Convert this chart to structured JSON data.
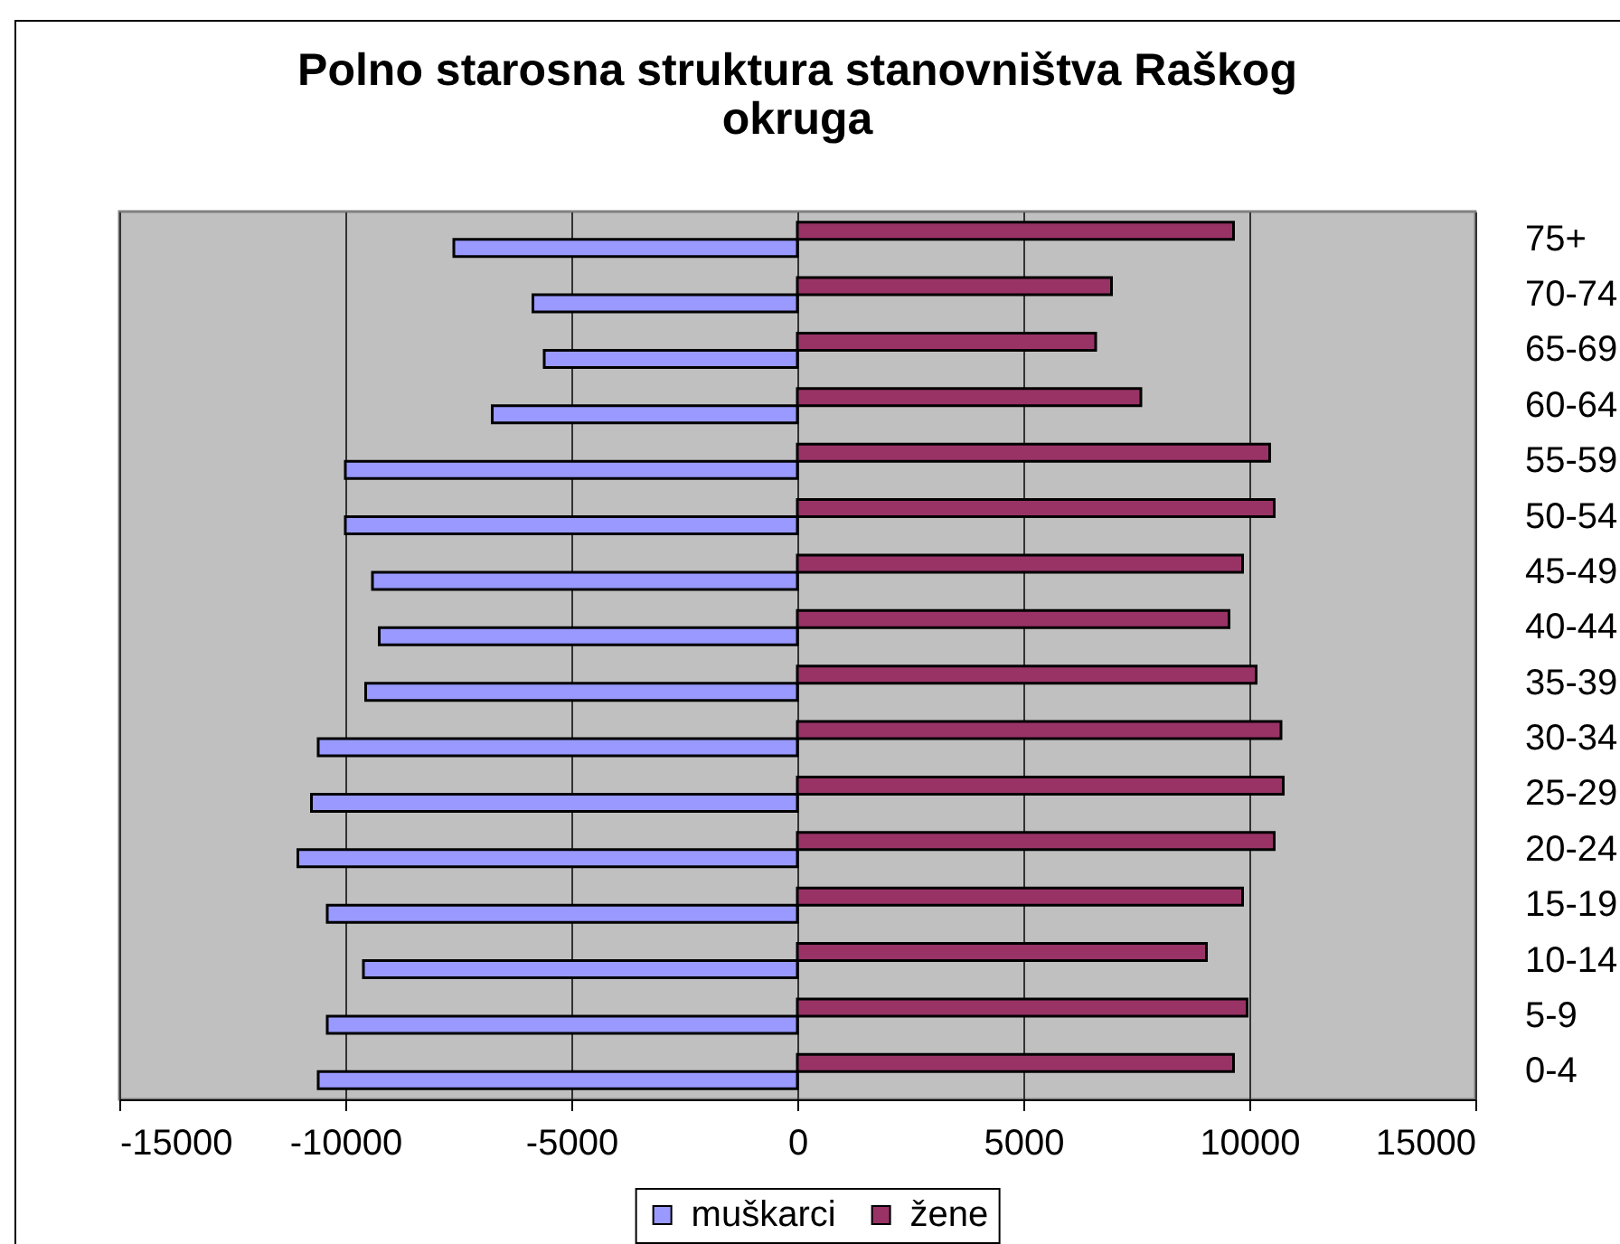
{
  "chart_data": {
    "type": "bar",
    "orientation": "horizontal",
    "title": "Polno starosna struktura stanovništva Raškog okruga",
    "categories": [
      "75+",
      "70-74",
      "65-69",
      "60-64",
      "55-59",
      "50-54",
      "45-49",
      "40-44",
      "35-39",
      "30-34",
      "25-29",
      "20-24",
      "15-19",
      "10-14",
      "5-9",
      "0-4"
    ],
    "series": [
      {
        "name": "muškarci",
        "color": "#9999ff",
        "values": [
          -7600,
          -5850,
          -5600,
          -6750,
          -10000,
          -10000,
          -9400,
          -9250,
          -9550,
          -10600,
          -10750,
          -11050,
          -10400,
          -9600,
          -10400,
          -10600
        ]
      },
      {
        "name": "žene",
        "color": "#993366",
        "values": [
          9650,
          6950,
          6600,
          7600,
          10450,
          10550,
          9850,
          9550,
          10150,
          10700,
          10750,
          10550,
          9850,
          9050,
          9950,
          9650
        ]
      }
    ],
    "xlim": [
      -15000,
      15000
    ],
    "xticks": [
      -15000,
      -10000,
      -5000,
      0,
      5000,
      10000,
      15000
    ],
    "grid": "x",
    "legend": "bottom"
  }
}
